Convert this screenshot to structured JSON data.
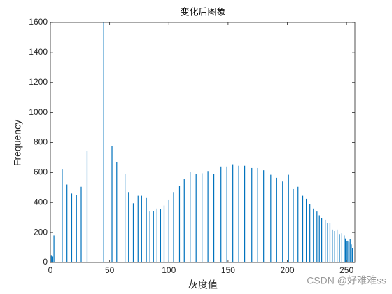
{
  "chart_data": {
    "type": "bar",
    "title": "变化后图象",
    "x_label": "灰度值",
    "y_label": "Frequency",
    "watermark": "CSDN @好难难ss",
    "color": "#0072bd",
    "x": [
      0,
      1,
      2,
      3,
      10,
      14,
      18,
      22,
      26,
      31,
      45,
      52,
      56,
      63,
      66,
      70,
      74,
      77,
      81,
      84,
      87,
      90,
      93,
      96,
      100,
      104,
      109,
      113,
      118,
      123,
      128,
      133,
      138,
      144,
      149,
      154,
      159,
      164,
      170,
      175,
      180,
      186,
      191,
      196,
      201,
      205,
      209,
      213,
      216,
      219,
      222,
      225,
      227,
      229,
      232,
      234,
      236,
      238,
      240,
      242,
      244,
      246,
      248,
      249,
      250,
      251,
      252,
      253,
      254,
      255
    ],
    "values": [
      45,
      45,
      40,
      180,
      620,
      520,
      460,
      450,
      505,
      745,
      1700,
      775,
      670,
      590,
      470,
      395,
      445,
      445,
      430,
      340,
      345,
      360,
      355,
      380,
      420,
      470,
      510,
      555,
      605,
      590,
      595,
      610,
      590,
      640,
      640,
      655,
      645,
      645,
      630,
      630,
      615,
      585,
      565,
      540,
      585,
      490,
      505,
      445,
      425,
      390,
      360,
      340,
      315,
      295,
      285,
      265,
      265,
      220,
      210,
      220,
      190,
      195,
      180,
      160,
      140,
      145,
      135,
      155,
      120,
      95
    ],
    "xlim": [
      0,
      257
    ],
    "ylim": [
      0,
      1600
    ],
    "xticks": [
      0,
      50,
      100,
      150,
      200,
      250
    ],
    "yticks": [
      0,
      200,
      400,
      600,
      800,
      1000,
      1200,
      1400,
      1600
    ]
  }
}
